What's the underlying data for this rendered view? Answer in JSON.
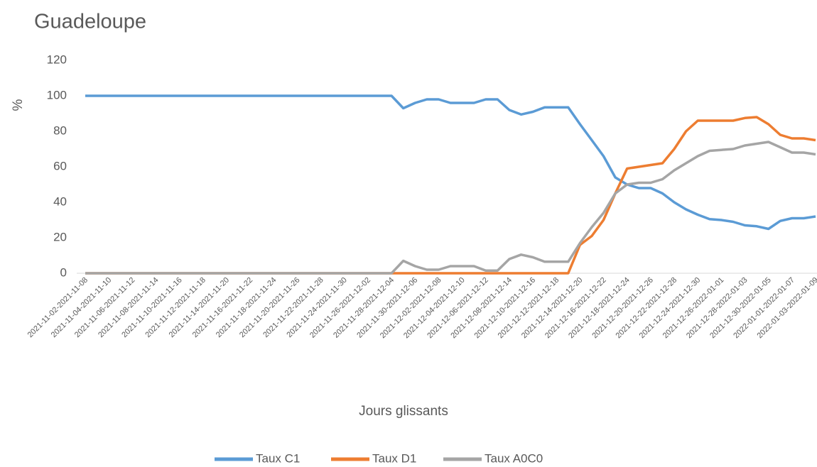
{
  "chart_data": {
    "type": "line",
    "title": "Guadeloupe",
    "x_label": "Jours glissants",
    "y_label": "%",
    "categories": [
      "2021-11-02-2021-11-08",
      null,
      "2021-11-04-2021-11-10",
      null,
      "2021-11-06-2021-11-12",
      null,
      "2021-11-08-2021-11-14",
      null,
      "2021-11-10-2021-11-16",
      null,
      "2021-11-12-2021-11-18",
      null,
      "2021-11-14-2021-11-20",
      null,
      "2021-11-16-2021-11-22",
      null,
      "2021-11-18-2021-11-24",
      null,
      "2021-11-20-2021-11-26",
      null,
      "2021-11-22-2021-11-28",
      null,
      "2021-11-24-2021-11-30",
      null,
      "2021-11-26-2021-12-02",
      null,
      "2021-11-28-2021-12-04",
      null,
      "2021-11-30-2021-12-06",
      null,
      "2021-12-02-2021-12-08",
      null,
      "2021-12-04-2021-12-10",
      null,
      "2021-12-06-2021-12-12",
      null,
      "2021-12-08-2021-12-14",
      null,
      "2021-12-10-2021-12-16",
      null,
      "2021-12-12-2021-12-18",
      null,
      "2021-12-14-2021-12-20",
      null,
      "2021-12-16-2021-12-22",
      null,
      "2021-12-18-2021-12-24",
      null,
      "2021-12-20-2021-12-26",
      null,
      "2021-12-22-2021-12-28",
      null,
      "2021-12-24-2021-12-30",
      null,
      "2021-12-26-2022-01-01",
      null,
      "2021-12-28-2022-01-03",
      null,
      "2021-12-30-2022-01-05",
      null,
      "2022-01-01-2022-01-07",
      null,
      "2022-01-03-2022-01-09"
    ],
    "series": [
      {
        "name": "Taux C1",
        "color": "#5b9bd5",
        "values": [
          100,
          100,
          100,
          100,
          100,
          100,
          100,
          100,
          100,
          100,
          100,
          100,
          100,
          100,
          100,
          100,
          100,
          100,
          100,
          100,
          100,
          100,
          100,
          100,
          100,
          100,
          100,
          93,
          96,
          98,
          98,
          96,
          96,
          96,
          98,
          98,
          92,
          89.5,
          91,
          93.5,
          93.5,
          93.5,
          84,
          75,
          66,
          54,
          50,
          48,
          48,
          45,
          40,
          36,
          33,
          30.5,
          30,
          29,
          27,
          26.5,
          25,
          29.5,
          31,
          31,
          32
        ]
      },
      {
        "name": "Taux D1",
        "color": "#ed7d31",
        "values": [
          0,
          0,
          0,
          0,
          0,
          0,
          0,
          0,
          0,
          0,
          0,
          0,
          0,
          0,
          0,
          0,
          0,
          0,
          0,
          0,
          0,
          0,
          0,
          0,
          0,
          0,
          0,
          0,
          0,
          0,
          0,
          0,
          0,
          0,
          0,
          0,
          0,
          0,
          0,
          0,
          0,
          0,
          16,
          21,
          30,
          45,
          59,
          60,
          61,
          62,
          70,
          80,
          86,
          86,
          86,
          86,
          87.5,
          88,
          84,
          78,
          76,
          76,
          75
        ]
      },
      {
        "name": "Taux A0C0",
        "color": "#a5a5a5",
        "values": [
          0,
          0,
          0,
          0,
          0,
          0,
          0,
          0,
          0,
          0,
          0,
          0,
          0,
          0,
          0,
          0,
          0,
          0,
          0,
          0,
          0,
          0,
          0,
          0,
          0,
          0,
          0,
          7,
          4,
          2,
          2,
          4,
          4,
          4,
          1.5,
          1.5,
          8,
          10.5,
          9,
          6.5,
          6.5,
          6.5,
          17,
          26,
          34,
          45,
          50,
          51,
          51,
          53,
          58,
          62,
          66,
          69,
          69.5,
          70,
          72,
          73,
          74,
          71,
          68,
          68,
          67
        ]
      }
    ],
    "ylim": [
      0,
      120
    ],
    "yticks": [
      0,
      20,
      40,
      60,
      80,
      100,
      120
    ],
    "grid": false,
    "legend": "bottom"
  }
}
